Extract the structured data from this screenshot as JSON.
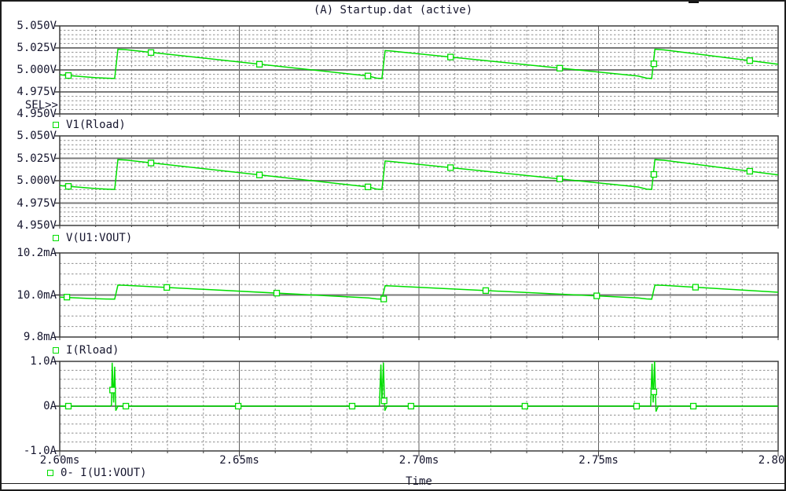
{
  "title": "(A) Startup.dat (active)",
  "sel_indicator": "SEL>>",
  "colors": {
    "background": "#ffffff",
    "trace": "#00DE00",
    "marker_fill": "#ffffff",
    "text": "#16162e",
    "grid_minor": "#8f8f8f",
    "grid_major_h": "#7a7a7a",
    "grid_major_v": "#5f5f5f",
    "border": "#3c3c3c",
    "window_border": "#1c1c1c"
  },
  "time_axis": {
    "label": "Time",
    "unit": "ms",
    "min": 2.6,
    "max": 2.8,
    "major_step": 0.05,
    "minor_step": 0.01,
    "tick_labels": [
      "2.60ms",
      "2.65ms",
      "2.70ms",
      "2.75ms",
      "2.80ms"
    ]
  },
  "chart_data": {
    "type": "line",
    "x_unit": "ms",
    "x_range": [
      2.6,
      2.8
    ],
    "panels": [
      {
        "name": "V1(Rload)",
        "y_unit": "V",
        "selected": true,
        "y_min": 4.95,
        "y_max": 5.05,
        "y_major_step": 0.025,
        "y_minor_step": 0.005,
        "tick_labels": [
          "5.050V",
          "5.025V",
          "5.000V",
          "4.975V",
          "4.950V"
        ],
        "trace": [
          [
            2.6,
            4.9945
          ],
          [
            2.61,
            4.9912
          ],
          [
            2.613,
            4.9906
          ],
          [
            2.6153,
            4.9903
          ],
          [
            2.6162,
            5.0235
          ],
          [
            2.6185,
            5.023
          ],
          [
            2.686,
            4.993
          ],
          [
            2.6882,
            4.9906
          ],
          [
            2.6897,
            4.9903
          ],
          [
            2.6906,
            5.022
          ],
          [
            2.6922,
            5.0215
          ],
          [
            2.761,
            4.993
          ],
          [
            2.7634,
            4.9906
          ],
          [
            2.7648,
            4.9903
          ],
          [
            2.7657,
            5.0235
          ],
          [
            2.7682,
            5.0228
          ],
          [
            2.8,
            5.0065
          ]
        ],
        "markers": [
          [
            2.6024,
            4.9937
          ],
          [
            2.6254,
            5.0197
          ],
          [
            2.6556,
            5.0064
          ],
          [
            2.6858,
            4.9931
          ],
          [
            2.7088,
            5.0146
          ],
          [
            2.7392,
            5.002
          ],
          [
            2.7654,
            5.007
          ],
          [
            2.7921,
            5.0105
          ]
        ]
      },
      {
        "name": "V(U1:VOUT)",
        "y_unit": "V",
        "selected": false,
        "y_min": 4.95,
        "y_max": 5.05,
        "y_major_step": 0.025,
        "y_minor_step": 0.005,
        "tick_labels": [
          "5.050V",
          "5.025V",
          "5.000V",
          "4.975V",
          "4.950V"
        ],
        "trace": [
          [
            2.6,
            4.9945
          ],
          [
            2.61,
            4.9912
          ],
          [
            2.613,
            4.9906
          ],
          [
            2.6153,
            4.9903
          ],
          [
            2.6162,
            5.0235
          ],
          [
            2.6185,
            5.023
          ],
          [
            2.686,
            4.993
          ],
          [
            2.6882,
            4.9906
          ],
          [
            2.6897,
            4.9903
          ],
          [
            2.6906,
            5.022
          ],
          [
            2.6922,
            5.0215
          ],
          [
            2.761,
            4.993
          ],
          [
            2.7634,
            4.9906
          ],
          [
            2.7648,
            4.9903
          ],
          [
            2.7657,
            5.0235
          ],
          [
            2.7682,
            5.0228
          ],
          [
            2.8,
            5.0065
          ]
        ],
        "markers": [
          [
            2.6024,
            4.9937
          ],
          [
            2.6254,
            5.0197
          ],
          [
            2.6556,
            5.0064
          ],
          [
            2.6858,
            4.9931
          ],
          [
            2.7088,
            5.0146
          ],
          [
            2.7392,
            5.002
          ],
          [
            2.7654,
            5.007
          ],
          [
            2.7921,
            5.0105
          ]
        ]
      },
      {
        "name": "I(Rload)",
        "y_unit": "mA",
        "selected": false,
        "y_min": 9.8,
        "y_max": 10.2,
        "y_major_step": 0.2,
        "y_minor_step": 0.05,
        "tick_labels": [
          "10.2mA",
          "10.0mA",
          "9.8mA"
        ],
        "trace": [
          [
            2.6,
            9.99
          ],
          [
            2.61,
            9.9825
          ],
          [
            2.613,
            9.981
          ],
          [
            2.6153,
            9.98
          ],
          [
            2.6162,
            10.047
          ],
          [
            2.6185,
            10.046
          ],
          [
            2.686,
            9.986
          ],
          [
            2.6882,
            9.9812
          ],
          [
            2.6897,
            9.98
          ],
          [
            2.6906,
            10.044
          ],
          [
            2.6922,
            10.043
          ],
          [
            2.761,
            9.986
          ],
          [
            2.7634,
            9.9812
          ],
          [
            2.7648,
            9.98
          ],
          [
            2.7657,
            10.047
          ],
          [
            2.7682,
            10.046
          ],
          [
            2.8,
            10.013
          ]
        ],
        "markers": [
          [
            2.602,
            9.99
          ],
          [
            2.6298,
            10.036
          ],
          [
            2.6604,
            10.009
          ],
          [
            2.6902,
            9.981
          ],
          [
            2.7186,
            10.021
          ],
          [
            2.7495,
            9.996
          ],
          [
            2.777,
            10.037
          ]
        ]
      },
      {
        "name": "0- I(U1:VOUT)",
        "y_unit": "A",
        "selected": false,
        "y_min": -1.0,
        "y_max": 1.0,
        "y_major_step": 1.0,
        "y_minor_step": 0.2,
        "tick_labels": [
          "1.0A",
          "0A",
          "-1.0A"
        ],
        "trace": [
          [
            2.6,
            0
          ],
          [
            2.614,
            0
          ],
          [
            2.6144,
            0.02
          ],
          [
            2.6146,
            0.97
          ],
          [
            2.615,
            0.08
          ],
          [
            2.6153,
            0.88
          ],
          [
            2.6156,
            -0.1
          ],
          [
            2.6162,
            0
          ],
          [
            2.689,
            0
          ],
          [
            2.6894,
            0.93
          ],
          [
            2.6897,
            0.06
          ],
          [
            2.6901,
            0.97
          ],
          [
            2.6905,
            -0.1
          ],
          [
            2.6911,
            0
          ],
          [
            2.7645,
            0
          ],
          [
            2.7649,
            0.95
          ],
          [
            2.7652,
            0.08
          ],
          [
            2.7656,
            1.0
          ],
          [
            2.766,
            -0.12
          ],
          [
            2.7666,
            0
          ],
          [
            2.8,
            0
          ]
        ],
        "markers": [
          [
            2.6024,
            0
          ],
          [
            2.6147,
            0.36
          ],
          [
            2.6184,
            0
          ],
          [
            2.6497,
            0
          ],
          [
            2.6814,
            0
          ],
          [
            2.6903,
            0.12
          ],
          [
            2.6978,
            0
          ],
          [
            2.7295,
            0
          ],
          [
            2.7606,
            0
          ],
          [
            2.7654,
            0.32
          ],
          [
            2.7764,
            0
          ]
        ]
      }
    ]
  }
}
